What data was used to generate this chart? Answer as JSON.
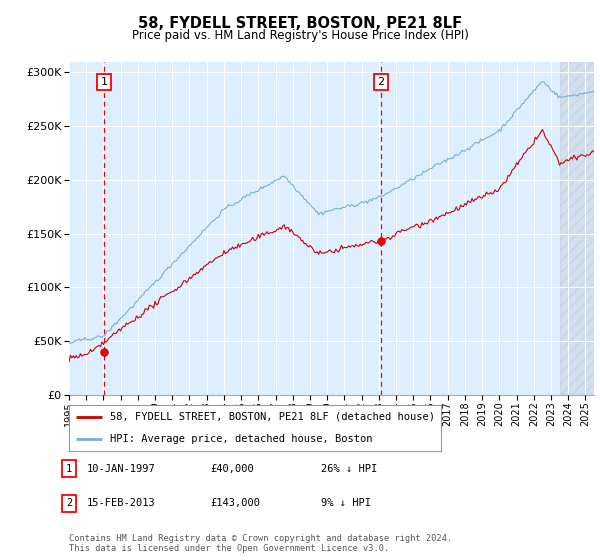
{
  "title": "58, FYDELL STREET, BOSTON, PE21 8LF",
  "subtitle": "Price paid vs. HM Land Registry's House Price Index (HPI)",
  "ylim": [
    0,
    310000
  ],
  "xlim_start": 1995.0,
  "xlim_end": 2025.5,
  "hpi_color": "#7aaed6",
  "price_color": "#cc0000",
  "bg_color": "#ddeeff",
  "transaction1_date": 1997.04,
  "transaction1_price": 40000,
  "transaction2_date": 2013.12,
  "transaction2_price": 143000,
  "legend_line1": "58, FYDELL STREET, BOSTON, PE21 8LF (detached house)",
  "legend_line2": "HPI: Average price, detached house, Boston",
  "annotation1_date": "10-JAN-1997",
  "annotation1_price": "£40,000",
  "annotation1_hpi": "26% ↓ HPI",
  "annotation2_date": "15-FEB-2013",
  "annotation2_price": "£143,000",
  "annotation2_hpi": "9% ↓ HPI",
  "footer": "Contains HM Land Registry data © Crown copyright and database right 2024.\nThis data is licensed under the Open Government Licence v3.0."
}
